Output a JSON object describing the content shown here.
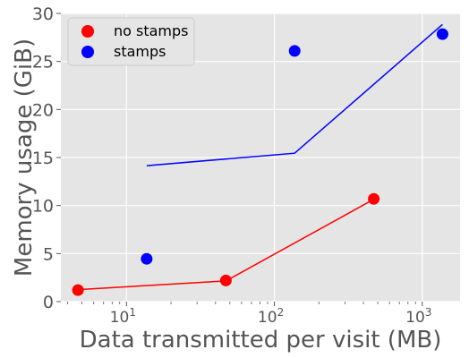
{
  "chart_data": {
    "type": "scatter",
    "xlabel": "Data transmitted per visit (MB)",
    "ylabel": "Memory usage (GiB)",
    "xscale": "log",
    "xlim": [
      3.6,
      1800
    ],
    "ylim": [
      0,
      30
    ],
    "grid": true,
    "legend_position": "top-left",
    "y_ticks": [
      0,
      5,
      10,
      15,
      20,
      25,
      30
    ],
    "x_major_ticks": [
      10,
      100,
      1000
    ],
    "x_tick_labels": [
      {
        "base": "10",
        "exp": "1"
      },
      {
        "base": "10",
        "exp": "2"
      },
      {
        "base": "10",
        "exp": "3"
      }
    ],
    "series": [
      {
        "name": "no stamps",
        "color": "#ff0000",
        "points": [
          [
            4.7,
            1.2
          ],
          [
            47,
            2.2
          ],
          [
            470,
            10.7
          ]
        ],
        "line": [
          [
            4.7,
            1.25
          ],
          [
            47,
            2.15
          ],
          [
            470,
            10.65
          ]
        ]
      },
      {
        "name": "stamps",
        "color": "#0000ff",
        "points": [
          [
            13.7,
            4.45
          ],
          [
            137,
            26.1
          ],
          [
            1370,
            27.85
          ]
        ],
        "line": [
          [
            13.7,
            14.15
          ],
          [
            137,
            15.45
          ],
          [
            1370,
            28.85
          ]
        ]
      }
    ]
  }
}
